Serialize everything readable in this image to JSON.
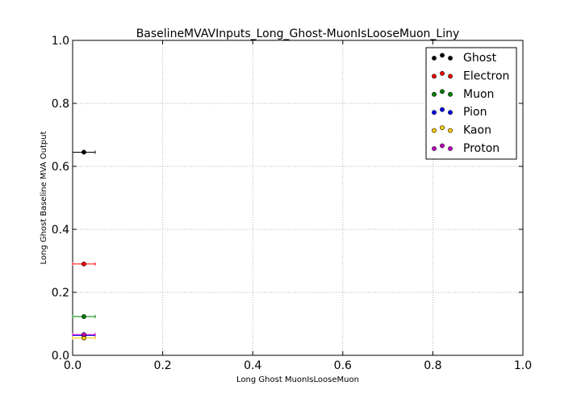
{
  "chart_data": {
    "type": "scatter",
    "title": "BaselineMVAVInputs_Long_Ghost-MuonIsLooseMuon_Liny",
    "xlabel": "Long Ghost MuonIsLooseMuon",
    "ylabel": "Long Ghost Baseline MVA Output",
    "xlim": [
      0.0,
      1.0
    ],
    "ylim": [
      0.0,
      1.0
    ],
    "x_ticks": [
      "0.0",
      "0.2",
      "0.4",
      "0.6",
      "0.8",
      "1.0"
    ],
    "y_ticks": [
      "0.0",
      "0.2",
      "0.4",
      "0.6",
      "0.8",
      "1.0"
    ],
    "grid": true,
    "legend_position": "top-right",
    "series": [
      {
        "name": "Ghost",
        "color": "#000000",
        "points": [
          {
            "x": 0.025,
            "y": 0.645,
            "xerr": 0.025
          }
        ]
      },
      {
        "name": "Electron",
        "color": "#ff0000",
        "points": [
          {
            "x": 0.025,
            "y": 0.29,
            "xerr": 0.025
          }
        ]
      },
      {
        "name": "Muon",
        "color": "#008000",
        "points": [
          {
            "x": 0.025,
            "y": 0.123,
            "xerr": 0.025
          }
        ]
      },
      {
        "name": "Pion",
        "color": "#0000ff",
        "points": [
          {
            "x": 0.025,
            "y": 0.063,
            "xerr": 0.025
          }
        ]
      },
      {
        "name": "Kaon",
        "color": "#ffcc00",
        "points": [
          {
            "x": 0.025,
            "y": 0.055,
            "xerr": 0.025
          }
        ]
      },
      {
        "name": "Proton",
        "color": "#c000c0",
        "points": [
          {
            "x": 0.025,
            "y": 0.066,
            "xerr": 0.025
          }
        ]
      }
    ]
  }
}
